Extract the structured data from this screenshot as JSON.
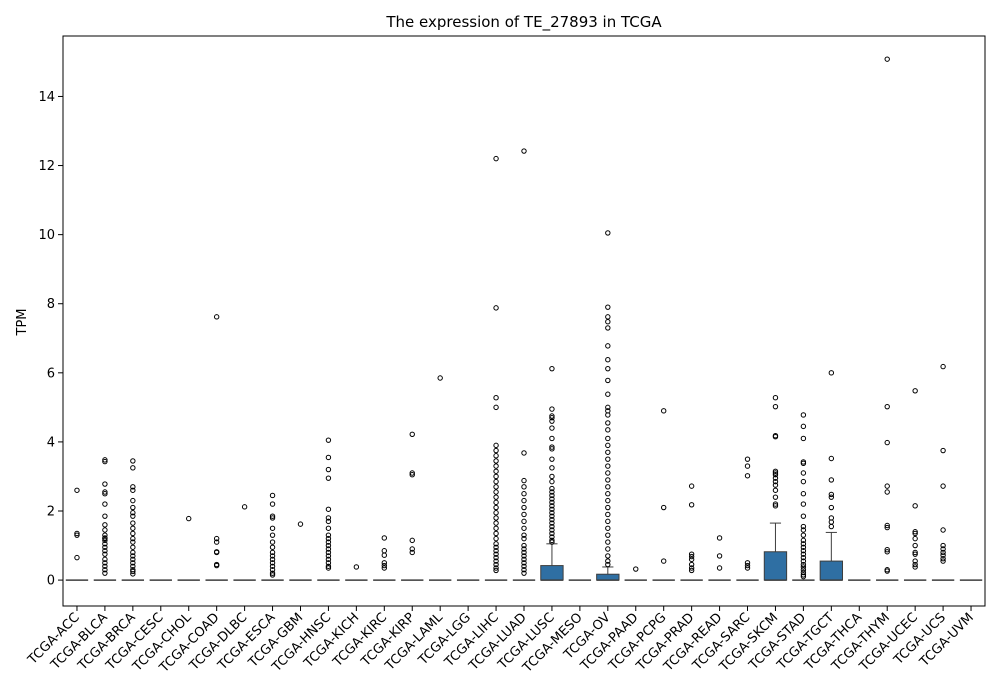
{
  "chart_data": {
    "type": "box",
    "title": "The expression of TE_27893 in TCGA",
    "xlabel": "",
    "ylabel": "TPM",
    "ylim": [
      -0.75,
      15.75
    ],
    "yticks": [
      0,
      2,
      4,
      6,
      8,
      10,
      12,
      14
    ],
    "grid": false,
    "box_color": "#2f6fa3",
    "categories": [
      "TCGA-ACC",
      "TCGA-BLCA",
      "TCGA-BRCA",
      "TCGA-CESC",
      "TCGA-CHOL",
      "TCGA-COAD",
      "TCGA-DLBC",
      "TCGA-ESCA",
      "TCGA-GBM",
      "TCGA-HNSC",
      "TCGA-KICH",
      "TCGA-KIRC",
      "TCGA-KIRP",
      "TCGA-LAML",
      "TCGA-LGG",
      "TCGA-LIHC",
      "TCGA-LUAD",
      "TCGA-LUSC",
      "TCGA-MESO",
      "TCGA-OV",
      "TCGA-PAAD",
      "TCGA-PCPG",
      "TCGA-PRAD",
      "TCGA-READ",
      "TCGA-SARC",
      "TCGA-SKCM",
      "TCGA-STAD",
      "TCGA-TGCT",
      "TCGA-THCA",
      "TCGA-THYM",
      "TCGA-UCEC",
      "TCGA-UCS",
      "TCGA-UVM"
    ],
    "boxes": [
      {
        "q1": 0,
        "median": 0,
        "q3": 0,
        "whisker_high": 0,
        "outliers": [
          2.6,
          1.35,
          1.3,
          0.65
        ]
      },
      {
        "q1": 0,
        "median": 0,
        "q3": 0,
        "whisker_high": 0,
        "outliers": [
          3.48,
          3.43,
          2.78,
          2.55,
          2.5,
          2.2,
          1.85,
          1.6,
          1.45,
          1.3,
          1.22,
          1.2,
          1.15,
          1.05,
          0.95,
          0.85,
          0.75,
          0.6,
          0.5,
          0.4,
          0.3,
          0.2
        ]
      },
      {
        "q1": 0,
        "median": 0,
        "q3": 0,
        "whisker_high": 0,
        "outliers": [
          3.45,
          3.25,
          2.7,
          2.6,
          2.3,
          2.1,
          1.95,
          1.85,
          1.65,
          1.5,
          1.35,
          1.2,
          1.1,
          0.95,
          0.8,
          0.7,
          0.6,
          0.5,
          0.4,
          0.3,
          0.25,
          0.18
        ]
      },
      {
        "q1": 0,
        "median": 0,
        "q3": 0,
        "whisker_high": 0,
        "outliers": []
      },
      {
        "q1": 0,
        "median": 0,
        "q3": 0,
        "whisker_high": 0,
        "outliers": [
          1.78
        ]
      },
      {
        "q1": 0,
        "median": 0,
        "q3": 0,
        "whisker_high": 0,
        "outliers": [
          7.62,
          1.2,
          1.1,
          0.82,
          0.8,
          0.45,
          0.42
        ]
      },
      {
        "q1": 0,
        "median": 0,
        "q3": 0,
        "whisker_high": 0,
        "outliers": [
          2.12
        ]
      },
      {
        "q1": 0,
        "median": 0,
        "q3": 0,
        "whisker_high": 0,
        "outliers": [
          2.45,
          2.2,
          1.85,
          1.8,
          1.5,
          1.3,
          1.1,
          0.95,
          0.8,
          0.7,
          0.6,
          0.5,
          0.4,
          0.3,
          0.2,
          0.15
        ]
      },
      {
        "q1": 0,
        "median": 0,
        "q3": 0,
        "whisker_high": 0,
        "outliers": [
          1.62
        ]
      },
      {
        "q1": 0,
        "median": 0,
        "q3": 0,
        "whisker_high": 0,
        "outliers": [
          4.05,
          3.55,
          3.2,
          2.95,
          2.05,
          1.8,
          1.7,
          1.5,
          1.3,
          1.2,
          1.1,
          1.0,
          0.9,
          0.8,
          0.7,
          0.6,
          0.5,
          0.4,
          0.35
        ]
      },
      {
        "q1": 0,
        "median": 0,
        "q3": 0,
        "whisker_high": 0,
        "outliers": [
          0.38
        ]
      },
      {
        "q1": 0,
        "median": 0,
        "q3": 0,
        "whisker_high": 0,
        "outliers": [
          1.22,
          0.85,
          0.72,
          0.5,
          0.42,
          0.35
        ]
      },
      {
        "q1": 0,
        "median": 0,
        "q3": 0,
        "whisker_high": 0,
        "outliers": [
          4.22,
          3.1,
          3.05,
          1.15,
          0.9,
          0.8
        ]
      },
      {
        "q1": 0,
        "median": 0,
        "q3": 0,
        "whisker_high": 0,
        "outliers": [
          5.85
        ]
      },
      {
        "q1": 0,
        "median": 0,
        "q3": 0,
        "whisker_high": 0,
        "outliers": []
      },
      {
        "q1": 0,
        "median": 0,
        "q3": 0,
        "whisker_high": 0,
        "outliers": [
          12.2,
          7.88,
          5.28,
          5.0,
          3.9,
          3.75,
          3.6,
          3.45,
          3.3,
          3.15,
          3.0,
          2.85,
          2.7,
          2.55,
          2.4,
          2.25,
          2.1,
          1.95,
          1.8,
          1.65,
          1.5,
          1.35,
          1.2,
          1.05,
          0.95,
          0.85,
          0.75,
          0.65,
          0.55,
          0.45,
          0.35,
          0.28
        ]
      },
      {
        "q1": 0,
        "median": 0,
        "q3": 0,
        "whisker_high": 0,
        "outliers": [
          12.42,
          3.68,
          2.88,
          2.7,
          2.5,
          2.3,
          2.1,
          1.9,
          1.7,
          1.5,
          1.3,
          1.2,
          1.0,
          0.9,
          0.8,
          0.7,
          0.6,
          0.5,
          0.4,
          0.3,
          0.2
        ]
      },
      {
        "q1": 0,
        "median": 0,
        "q3": 0.42,
        "whisker_high": 1.05,
        "outliers": [
          6.12,
          4.95,
          4.75,
          4.7,
          4.6,
          4.4,
          4.1,
          3.85,
          3.8,
          3.5,
          3.25,
          3.0,
          2.85,
          2.65,
          2.55,
          2.45,
          2.35,
          2.25,
          2.15,
          2.05,
          1.95,
          1.85,
          1.75,
          1.65,
          1.55,
          1.45,
          1.35,
          1.25,
          1.15,
          1.1
        ]
      },
      {
        "q1": 0,
        "median": 0,
        "q3": 0,
        "whisker_high": 0,
        "outliers": []
      },
      {
        "q1": 0,
        "median": 0,
        "q3": 0.17,
        "whisker_high": 0.38,
        "outliers": [
          10.05,
          7.9,
          7.62,
          7.48,
          7.3,
          6.78,
          6.38,
          6.12,
          5.78,
          5.38,
          5.0,
          4.9,
          4.78,
          4.55,
          4.35,
          4.1,
          3.9,
          3.7,
          3.5,
          3.3,
          3.1,
          2.9,
          2.7,
          2.5,
          2.3,
          2.1,
          1.9,
          1.7,
          1.5,
          1.3,
          1.1,
          0.9,
          0.7,
          0.55,
          0.45
        ]
      },
      {
        "q1": 0,
        "median": 0,
        "q3": 0,
        "whisker_high": 0,
        "outliers": [
          0.32
        ]
      },
      {
        "q1": 0,
        "median": 0,
        "q3": 0,
        "whisker_high": 0,
        "outliers": [
          4.9,
          2.1,
          0.55
        ]
      },
      {
        "q1": 0,
        "median": 0,
        "q3": 0,
        "whisker_high": 0,
        "outliers": [
          2.72,
          2.18,
          0.75,
          0.68,
          0.6,
          0.45,
          0.35,
          0.28
        ]
      },
      {
        "q1": 0,
        "median": 0,
        "q3": 0,
        "whisker_high": 0,
        "outliers": [
          1.22,
          0.7,
          0.35
        ]
      },
      {
        "q1": 0,
        "median": 0,
        "q3": 0,
        "whisker_high": 0,
        "outliers": [
          3.5,
          3.3,
          3.02,
          0.5,
          0.42,
          0.35
        ]
      },
      {
        "q1": 0,
        "median": 0,
        "q3": 0.82,
        "whisker_high": 1.65,
        "outliers": [
          5.28,
          5.02,
          4.18,
          4.15,
          3.15,
          3.1,
          3.05,
          2.95,
          2.85,
          2.75,
          2.6,
          2.4,
          2.2,
          2.15
        ]
      },
      {
        "q1": 0,
        "median": 0,
        "q3": 0,
        "whisker_high": 0,
        "outliers": [
          4.78,
          4.45,
          4.1,
          3.42,
          3.38,
          3.1,
          2.85,
          2.5,
          2.2,
          1.85,
          1.55,
          1.45,
          1.3,
          1.15,
          1.05,
          0.95,
          0.85,
          0.75,
          0.65,
          0.55,
          0.45,
          0.38,
          0.3,
          0.22,
          0.15,
          0.1
        ]
      },
      {
        "q1": 0,
        "median": 0,
        "q3": 0.55,
        "whisker_high": 1.38,
        "outliers": [
          6.0,
          3.52,
          2.9,
          2.48,
          2.4,
          2.1,
          1.8,
          1.68,
          1.55
        ]
      },
      {
        "q1": 0,
        "median": 0,
        "q3": 0,
        "whisker_high": 0,
        "outliers": []
      },
      {
        "q1": 0,
        "median": 0,
        "q3": 0,
        "whisker_high": 0,
        "outliers": [
          15.08,
          5.02,
          3.98,
          2.72,
          2.55,
          1.58,
          1.52,
          0.88,
          0.82,
          0.3,
          0.26
        ]
      },
      {
        "q1": 0,
        "median": 0,
        "q3": 0,
        "whisker_high": 0,
        "outliers": [
          5.48,
          2.15,
          1.4,
          1.35,
          1.2,
          1.0,
          0.8,
          0.75,
          0.55,
          0.45,
          0.38
        ]
      },
      {
        "q1": 0,
        "median": 0,
        "q3": 0,
        "whisker_high": 0,
        "outliers": [
          6.18,
          3.75,
          2.72,
          1.45,
          1.0,
          0.9,
          0.8,
          0.72,
          0.62,
          0.55
        ]
      },
      {
        "q1": 0,
        "median": 0,
        "q3": 0,
        "whisker_high": 0,
        "outliers": []
      }
    ]
  }
}
